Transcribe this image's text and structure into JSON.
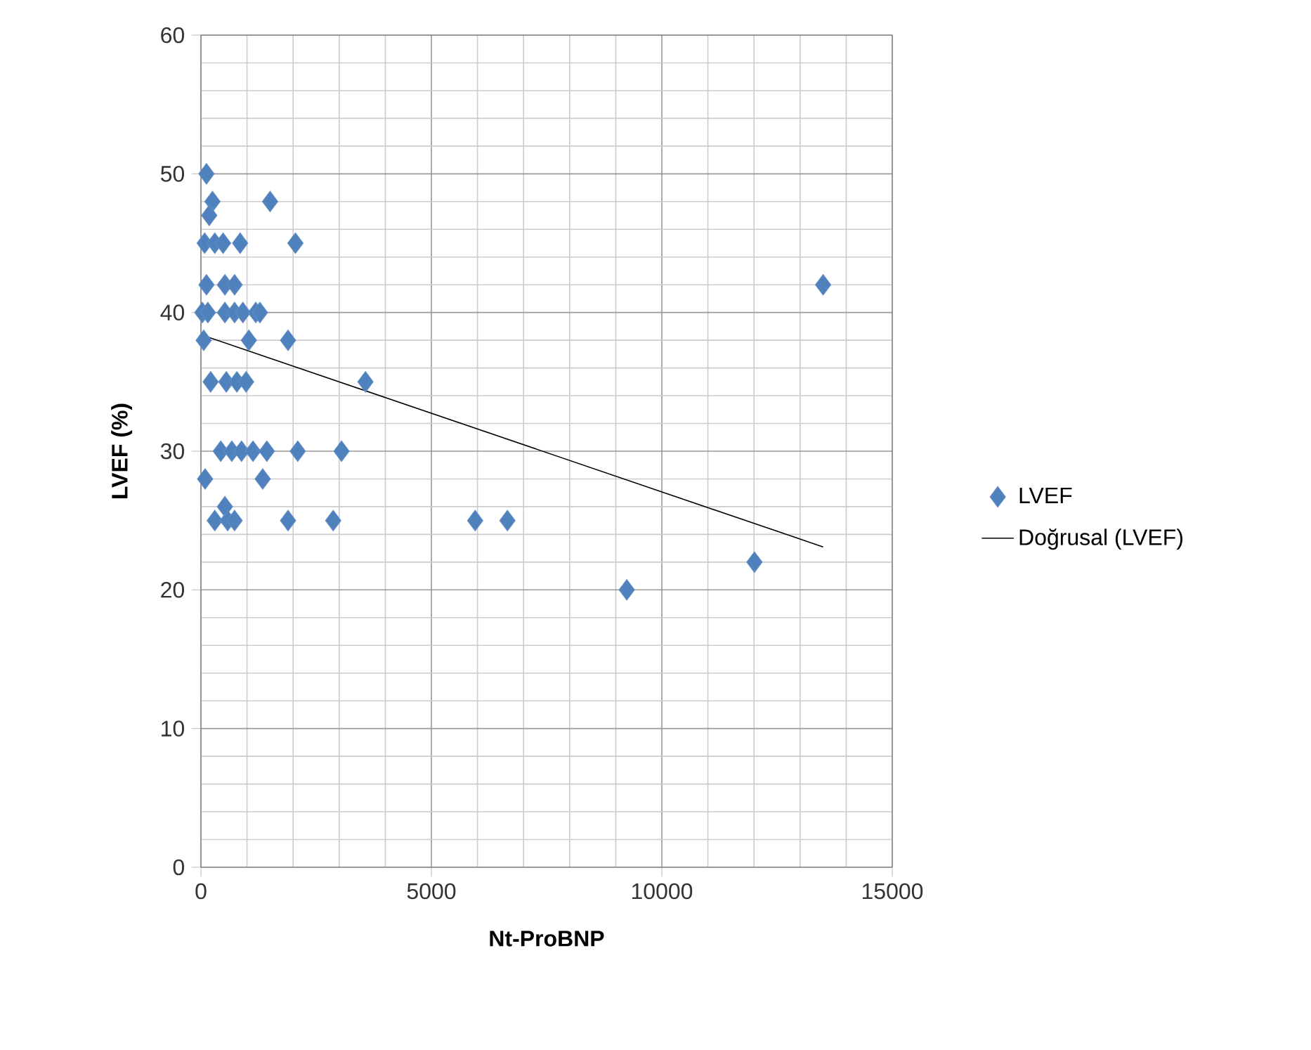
{
  "chart_data": {
    "type": "scatter",
    "xlabel": "Nt-ProBNP",
    "ylabel": "LVEF (%)",
    "xlim": [
      0,
      15000
    ],
    "ylim": [
      0,
      60
    ],
    "xticks": [
      0,
      5000,
      10000,
      15000
    ],
    "yticks": [
      0,
      10,
      20,
      30,
      40,
      50,
      60
    ],
    "grid": true,
    "legend": "right",
    "marker": "diamond",
    "series": [
      {
        "name": "LVEF",
        "color": "#4f81bd",
        "x": [
          120,
          250,
          1500,
          180,
          80,
          300,
          480,
          850,
          2050,
          120,
          520,
          730,
          13500,
          30,
          150,
          520,
          730,
          910,
          1190,
          1280,
          60,
          1040,
          1890,
          210,
          550,
          780,
          980,
          3570,
          430,
          670,
          880,
          1130,
          1430,
          2100,
          3050,
          90,
          1340,
          520,
          300,
          580,
          730,
          1890,
          2870,
          5950,
          6650,
          9240,
          12010
        ],
        "values": [
          50,
          48,
          48,
          47,
          45,
          45,
          45,
          45,
          45,
          42,
          42,
          42,
          42,
          40,
          40,
          40,
          40,
          40,
          40,
          40,
          38,
          38,
          38,
          35,
          35,
          35,
          35,
          35,
          30,
          30,
          30,
          30,
          30,
          30,
          30,
          28,
          28,
          26,
          25,
          25,
          25,
          25,
          25,
          25,
          25,
          20,
          22
        ]
      },
      {
        "name": "Doğrusal (LVEF)",
        "color": "#000000",
        "type": "line",
        "marker": "none",
        "x": [
          0,
          13500
        ],
        "values": [
          38.4,
          23.1
        ]
      }
    ]
  }
}
